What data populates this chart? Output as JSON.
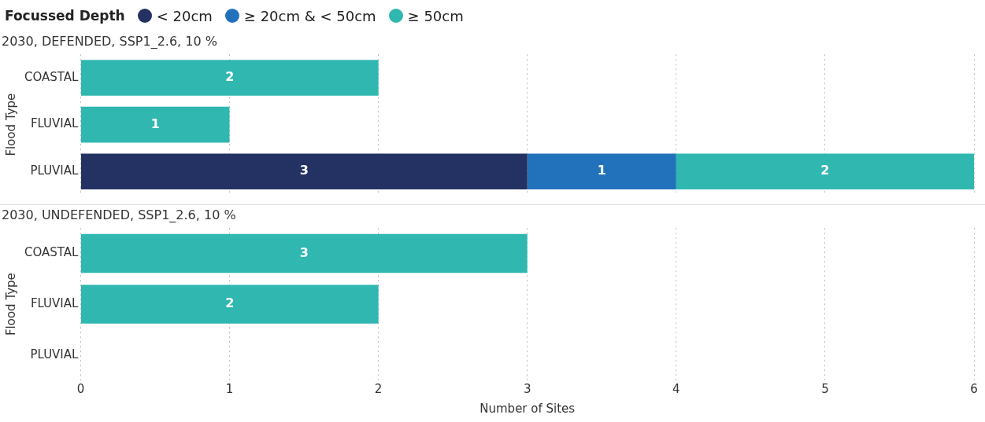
{
  "chart_data": [
    {
      "type": "bar",
      "orientation": "horizontal",
      "stacked": true,
      "title": "2030, DEFENDED, SSP1_2.6, 10 %",
      "ylabel": "Flood Type",
      "legend_title": "Focussed Depth",
      "legend": "top left",
      "categories": [
        "COASTAL",
        "FLUVIAL",
        "PLUVIAL"
      ],
      "series": [
        {
          "name": "< 20cm",
          "color": "#233163",
          "values": [
            null,
            null,
            3
          ]
        },
        {
          "name": "≥ 20cm & < 50cm",
          "color": "#2271bb",
          "values": [
            null,
            null,
            1
          ]
        },
        {
          "name": "≥ 50cm",
          "color": "#2fb7b0",
          "values": [
            2,
            1,
            2
          ]
        }
      ],
      "xlim": [
        0,
        6
      ],
      "xticks": [
        0,
        1,
        2,
        3,
        4,
        5,
        6
      ],
      "tick_labels": "y",
      "grid": "x",
      "data_labels": true
    },
    {
      "type": "bar",
      "orientation": "horizontal",
      "stacked": true,
      "title": "2030, UNDEFENDED, SSP1_2.6, 10 %",
      "ylabel": "Flood Type",
      "xlabel": "Number of Sites",
      "categories": [
        "COASTAL",
        "FLUVIAL",
        "PLUVIAL"
      ],
      "series": [
        {
          "color": "#2fb7b0",
          "values": [
            3,
            2,
            null
          ]
        }
      ],
      "xlim": [
        0,
        6
      ],
      "xticks": [
        0,
        1,
        2,
        3,
        4,
        5,
        6
      ],
      "grid": "x",
      "data_labels": true
    }
  ]
}
